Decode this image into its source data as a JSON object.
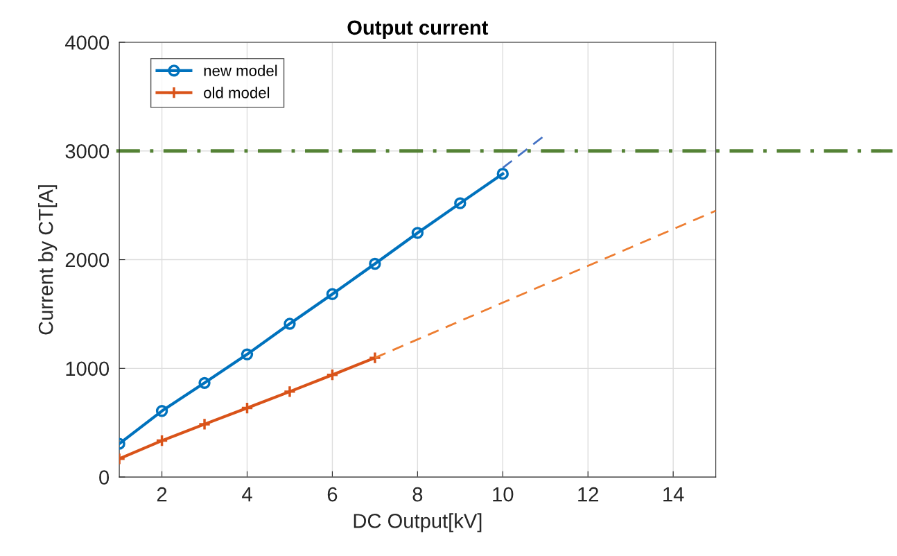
{
  "chart_data": {
    "type": "line",
    "title": "Output current",
    "xlabel": "DC Output[kV]",
    "ylabel": "Current by CT[A]",
    "xlim": [
      1,
      15
    ],
    "xticks": [
      2,
      4,
      6,
      8,
      10,
      12,
      14
    ],
    "ylim": [
      0,
      4000
    ],
    "yticks": [
      0,
      1000,
      2000,
      3000,
      4000
    ],
    "grid": true,
    "legend": "top left",
    "series": [
      {
        "name": "new model",
        "color": "#0072bd",
        "marker": "circle",
        "line_style": "solid",
        "x": [
          1,
          2,
          3,
          4,
          5,
          6,
          7,
          8,
          9,
          10
        ],
        "values": [
          306,
          608,
          866,
          1129,
          1410,
          1683,
          1962,
          2246,
          2519,
          2790
        ]
      },
      {
        "name": "old model",
        "color": "#d95319",
        "marker": "cross",
        "line_style": "solid",
        "x": [
          1,
          2,
          3,
          4,
          5,
          6,
          7
        ],
        "values": [
          168,
          335,
          486,
          635,
          786,
          940,
          1097
        ]
      },
      {
        "color": "#4472c4",
        "marker": "none",
        "line_style": "dashed",
        "x": [
          10,
          10.95
        ],
        "values": [
          2844,
          3132
        ]
      },
      {
        "color": "#ed7d31",
        "marker": "none",
        "line_style": "dashed",
        "x": [
          7,
          15
        ],
        "values": [
          1097,
          2450
        ]
      }
    ],
    "ref_lines": [
      {
        "axis": "y",
        "value": 3000,
        "color": "#548235",
        "line_style": "dashdot"
      }
    ]
  }
}
